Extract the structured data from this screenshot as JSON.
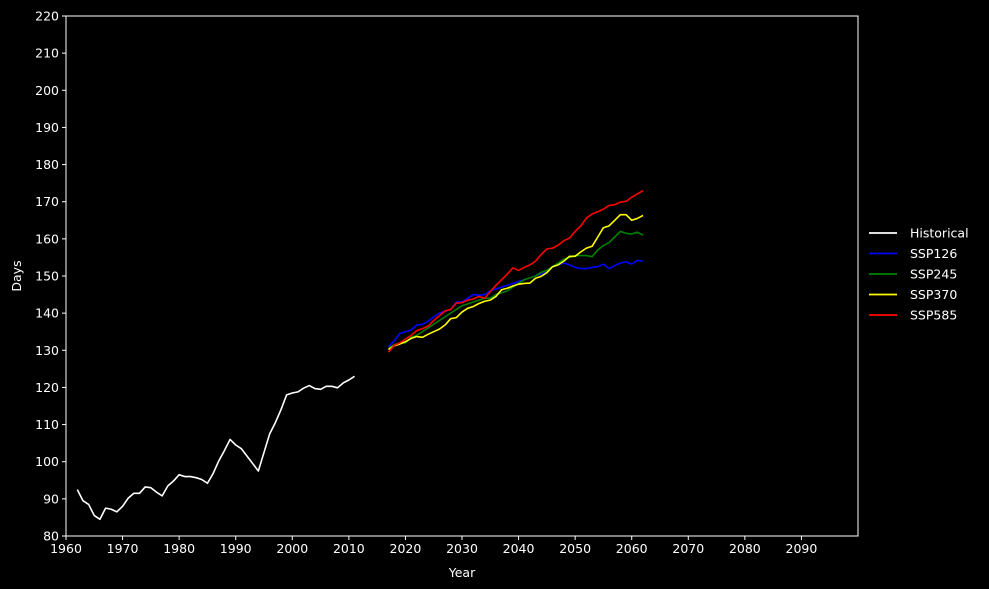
{
  "chart_data": {
    "type": "line",
    "title": "",
    "xlabel": "Year",
    "ylabel": "Days",
    "xlim": [
      1960,
      2100
    ],
    "ylim": [
      80,
      220
    ],
    "xticks": [
      1960,
      1970,
      1980,
      1990,
      2000,
      2010,
      2020,
      2030,
      2040,
      2050,
      2060,
      2070,
      2080,
      2090
    ],
    "yticks": [
      80,
      90,
      100,
      110,
      120,
      130,
      140,
      150,
      160,
      170,
      180,
      190,
      200,
      210,
      220
    ],
    "grid": false,
    "legend_position": "right",
    "background": "#000000",
    "axis_color": "#ffffff",
    "series": [
      {
        "name": "Historical",
        "color": "#ffffff",
        "x": [
          1962,
          1963,
          1964,
          1965,
          1966,
          1967,
          1968,
          1969,
          1970,
          1971,
          1972,
          1973,
          1974,
          1975,
          1976,
          1977,
          1978,
          1979,
          1980,
          1981,
          1982,
          1983,
          1984,
          1985,
          1986,
          1987,
          1988,
          1989,
          1990,
          1991,
          1992,
          1993,
          1994,
          1995,
          1996,
          1997,
          1998,
          1999,
          2000,
          2001,
          2002,
          2003,
          2004,
          2005,
          2006,
          2007,
          2008,
          2009,
          2010,
          2011
        ],
        "y": [
          92.5,
          89.5,
          88.5,
          85.5,
          84.5,
          87.5,
          87.2,
          86.5,
          88.0,
          90.2,
          91.5,
          91.5,
          93.2,
          93.0,
          91.8,
          90.8,
          93.5,
          94.8,
          96.5,
          96.0,
          96.0,
          95.7,
          95.2,
          94.2,
          96.8,
          100.2,
          103.0,
          106.0,
          104.5,
          103.5,
          101.5,
          99.5,
          97.5,
          102.5,
          107.5,
          110.5,
          114.0,
          118.0,
          118.5,
          118.8,
          119.8,
          120.5,
          119.7,
          119.5,
          120.3,
          120.3,
          119.9,
          121.2,
          122.0,
          123.0
        ]
      },
      {
        "name": "SSP126",
        "color": "#0000ff",
        "x": [
          2017,
          2018,
          2019,
          2020,
          2021,
          2022,
          2023,
          2024,
          2025,
          2026,
          2027,
          2028,
          2029,
          2030,
          2031,
          2032,
          2033,
          2034,
          2035,
          2036,
          2037,
          2038,
          2039,
          2040,
          2041,
          2042,
          2043,
          2044,
          2045,
          2046,
          2047,
          2048,
          2049,
          2050,
          2051,
          2052,
          2053,
          2054,
          2055,
          2056,
          2057,
          2058,
          2059,
          2060,
          2061,
          2062
        ],
        "y": [
          131.0,
          132.5,
          134.5,
          135.0,
          135.5,
          136.8,
          137.0,
          137.8,
          139.0,
          140.0,
          140.5,
          141.0,
          143.0,
          143.0,
          144.0,
          145.0,
          144.8,
          145.0,
          146.0,
          146.5,
          147.0,
          147.5,
          148.0,
          148.5,
          149.0,
          149.5,
          150.0,
          150.5,
          151.0,
          152.5,
          153.0,
          153.5,
          153.0,
          152.3,
          152.0,
          152.0,
          152.3,
          152.5,
          153.2,
          152.0,
          152.8,
          153.5,
          153.8,
          153.2,
          154.2,
          154.0
        ]
      },
      {
        "name": "SSP245",
        "color": "#008000",
        "x": [
          2017,
          2018,
          2019,
          2020,
          2021,
          2022,
          2023,
          2024,
          2025,
          2026,
          2027,
          2028,
          2029,
          2030,
          2031,
          2032,
          2033,
          2034,
          2035,
          2036,
          2037,
          2038,
          2039,
          2040,
          2041,
          2042,
          2043,
          2044,
          2045,
          2046,
          2047,
          2048,
          2049,
          2050,
          2051,
          2052,
          2053,
          2054,
          2055,
          2056,
          2057,
          2058,
          2059,
          2060,
          2061,
          2062
        ],
        "y": [
          130.5,
          131.5,
          132.0,
          132.0,
          133.5,
          134.0,
          135.0,
          136.0,
          137.0,
          138.0,
          139.0,
          140.0,
          141.0,
          142.0,
          142.5,
          143.0,
          143.5,
          144.0,
          144.0,
          145.0,
          145.5,
          146.0,
          147.0,
          148.0,
          149.0,
          149.5,
          150.0,
          151.0,
          151.5,
          152.5,
          153.5,
          154.5,
          155.0,
          155.5,
          155.5,
          155.5,
          155.2,
          157.0,
          158.2,
          159.0,
          160.5,
          162.0,
          161.5,
          161.3,
          161.8,
          161.0
        ]
      },
      {
        "name": "SSP370",
        "color": "#ffff00",
        "x": [
          2017,
          2018,
          2019,
          2020,
          2021,
          2022,
          2023,
          2024,
          2025,
          2026,
          2027,
          2028,
          2029,
          2030,
          2031,
          2032,
          2033,
          2034,
          2035,
          2036,
          2037,
          2038,
          2039,
          2040,
          2041,
          2042,
          2043,
          2044,
          2045,
          2046,
          2047,
          2048,
          2049,
          2050,
          2051,
          2052,
          2053,
          2054,
          2055,
          2056,
          2057,
          2058,
          2059,
          2060,
          2061,
          2062
        ],
        "y": [
          130.2,
          131.2,
          131.7,
          132.3,
          133.2,
          133.7,
          133.5,
          134.3,
          135.0,
          135.7,
          136.8,
          138.5,
          138.8,
          140.3,
          141.3,
          141.8,
          142.6,
          143.2,
          143.5,
          144.5,
          146.3,
          146.7,
          147.3,
          147.8,
          148.0,
          148.1,
          149.4,
          149.9,
          150.9,
          152.5,
          153.0,
          154.0,
          155.3,
          155.3,
          156.5,
          157.5,
          158.0,
          160.5,
          163.0,
          163.5,
          165.0,
          166.5,
          166.5,
          165.0,
          165.5,
          166.3
        ]
      },
      {
        "name": "SSP585",
        "color": "#ff0000",
        "x": [
          2017,
          2018,
          2019,
          2020,
          2021,
          2022,
          2023,
          2024,
          2025,
          2026,
          2027,
          2028,
          2029,
          2030,
          2031,
          2032,
          2033,
          2034,
          2035,
          2036,
          2037,
          2038,
          2039,
          2040,
          2041,
          2042,
          2043,
          2044,
          2045,
          2046,
          2047,
          2048,
          2049,
          2050,
          2051,
          2052,
          2053,
          2054,
          2055,
          2056,
          2057,
          2058,
          2059,
          2060,
          2061,
          2062
        ],
        "y": [
          129.5,
          131.3,
          132.0,
          133.0,
          134.0,
          135.3,
          135.8,
          136.5,
          138.0,
          139.3,
          140.6,
          141.0,
          142.7,
          142.8,
          143.5,
          143.8,
          144.5,
          144.0,
          145.8,
          147.5,
          149.0,
          150.5,
          152.2,
          151.5,
          152.3,
          153.0,
          154.0,
          155.8,
          157.3,
          157.5,
          158.3,
          159.5,
          160.2,
          162.0,
          163.5,
          165.6,
          166.7,
          167.3,
          168.0,
          169.0,
          169.2,
          169.9,
          170.1,
          171.2,
          172.1,
          173.0
        ]
      }
    ]
  }
}
